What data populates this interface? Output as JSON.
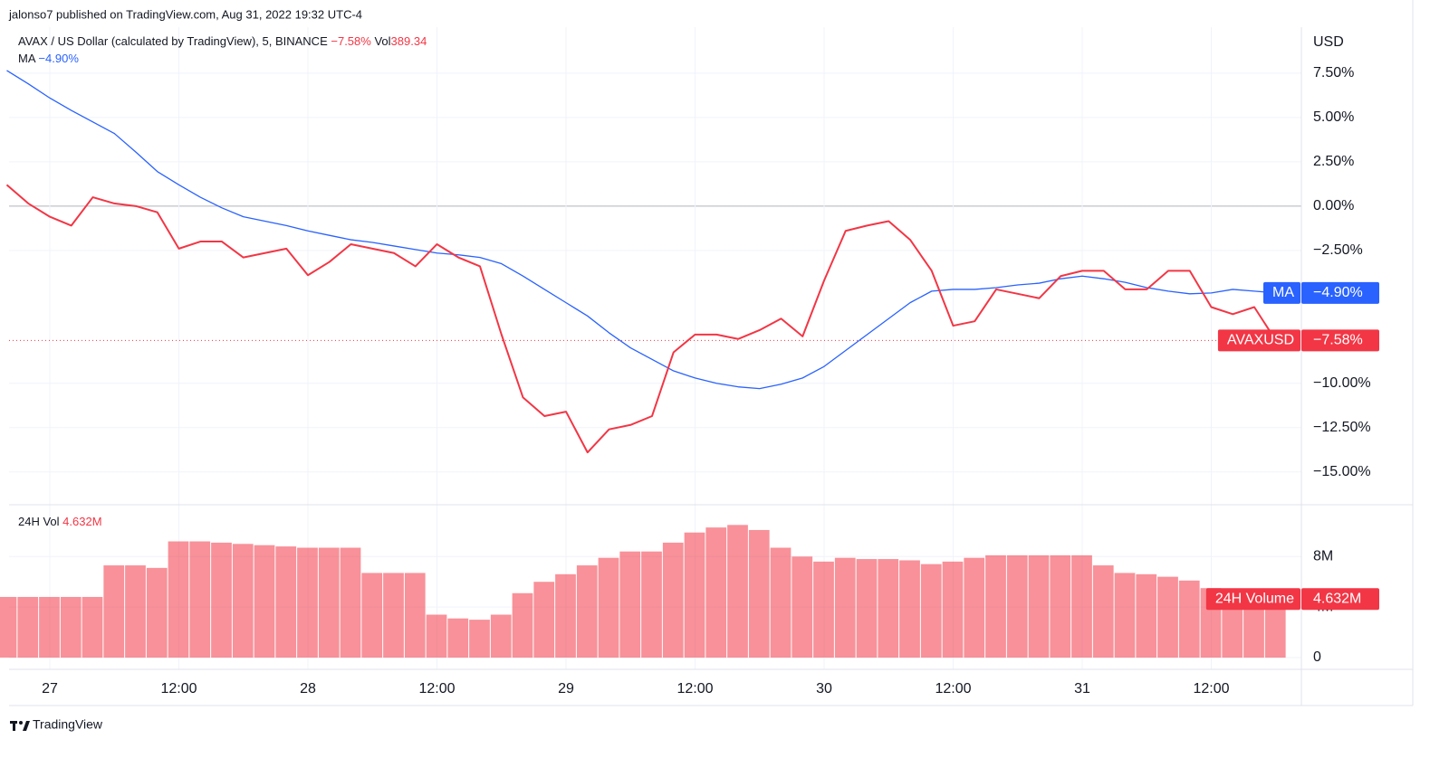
{
  "header": {
    "published": "jalonso7 published on TradingView.com, Aug 31, 2022 19:32 UTC-4"
  },
  "footer": {
    "brand": "TradingView"
  },
  "chart_data": {
    "type": "line",
    "currency": "USD",
    "symbol": "AVAXUSD",
    "vol_label": "Vol",
    "vol_value": "389.34",
    "categories": [
      null,
      null,
      "27",
      null,
      null,
      null,
      null,
      null,
      "12:00",
      null,
      null,
      null,
      null,
      null,
      "28",
      null,
      null,
      null,
      null,
      null,
      "12:00",
      null,
      null,
      null,
      null,
      null,
      "29",
      null,
      null,
      null,
      null,
      null,
      "12:00",
      null,
      null,
      null,
      null,
      null,
      "30",
      null,
      null,
      null,
      null,
      null,
      "12:00",
      null,
      null,
      null,
      null,
      null,
      "31",
      null,
      null,
      null,
      null,
      null,
      "12:00",
      null,
      null,
      null
    ],
    "ylim": [
      -16.7,
      10.1
    ],
    "yticks": [
      {
        "value": 7.5,
        "label": "7.50%"
      },
      {
        "value": 5,
        "label": "5.00%"
      },
      {
        "value": 2.5,
        "label": "2.50%"
      },
      {
        "value": 0,
        "label": "0.00%"
      },
      {
        "value": -2.5,
        "label": "−2.50%"
      },
      {
        "value": -10,
        "label": "−10.00%"
      },
      {
        "value": -12.5,
        "label": "−12.50%"
      },
      {
        "value": -15,
        "label": "−15.00%"
      }
    ],
    "grid": true,
    "series": [
      {
        "name": "AVAX / US Dollar (calculated by TradingView), 5, BINANCE",
        "color": "#f23645",
        "last_label": "−7.58%",
        "values": [
          1.2,
          0.15,
          -0.6,
          -1.1,
          0.5,
          0.15,
          0,
          -0.35,
          -2.4,
          -2.0,
          -2.0,
          -2.9,
          -2.65,
          -2.4,
          -3.9,
          -3.15,
          -2.15,
          -2.4,
          -2.65,
          -3.4,
          -2.15,
          -2.9,
          -3.4,
          -7.25,
          -10.8,
          -11.85,
          -11.6,
          -13.9,
          -12.6,
          -12.35,
          -11.85,
          -8.25,
          -7.25,
          -7.25,
          -7.5,
          -7.0,
          -6.35,
          -7.35,
          -4.2,
          -1.4,
          -1.1,
          -0.85,
          -1.9,
          -3.65,
          -6.75,
          -6.5,
          -4.7,
          -4.95,
          -5.2,
          -3.95,
          -3.65,
          -3.65,
          -4.7,
          -4.7,
          -3.65,
          -3.65,
          -5.7,
          -6.1,
          -5.7,
          -7.58
        ]
      },
      {
        "name": "MA",
        "color": "#2962ff",
        "last_label": "−4.90%",
        "values": [
          7.65,
          6.9,
          6.1,
          5.4,
          4.75,
          4.1,
          3.05,
          1.95,
          1.2,
          0.5,
          -0.1,
          -0.6,
          -0.85,
          -1.1,
          -1.4,
          -1.65,
          -1.9,
          -2.05,
          -2.25,
          -2.45,
          -2.65,
          -2.75,
          -2.9,
          -3.25,
          -3.95,
          -4.7,
          -5.45,
          -6.2,
          -7.15,
          -8.0,
          -8.65,
          -9.3,
          -9.7,
          -10.0,
          -10.2,
          -10.3,
          -10.05,
          -9.7,
          -9.05,
          -8.15,
          -7.25,
          -6.35,
          -5.45,
          -4.8,
          -4.7,
          -4.7,
          -4.6,
          -4.45,
          -4.35,
          -4.1,
          -3.95,
          -4.1,
          -4.3,
          -4.6,
          -4.8,
          -4.95,
          -4.9,
          -4.7,
          -4.8,
          -4.9
        ]
      }
    ],
    "volume": {
      "type": "bar",
      "name": "24H Vol",
      "tag": "24H Volume",
      "color": "#f23645",
      "last_label": "4.632M",
      "ylim": [
        0,
        11600000
      ],
      "yticks": [
        0,
        {
          "value": 4000000,
          "label": "4M"
        },
        {
          "value": 8000000,
          "label": "8M"
        }
      ],
      "values": [
        4800000,
        4800000,
        4800000,
        4800000,
        4800000,
        7300000,
        7300000,
        7100000,
        9200000,
        9200000,
        9100000,
        9000000,
        8900000,
        8800000,
        8700000,
        8700000,
        8700000,
        6700000,
        6700000,
        6700000,
        3400000,
        3100000,
        3000000,
        3400000,
        5100000,
        6000000,
        6600000,
        7300000,
        7900000,
        8400000,
        8400000,
        9100000,
        9900000,
        10300000,
        10500000,
        10100000,
        8700000,
        8000000,
        7600000,
        7900000,
        7800000,
        7800000,
        7700000,
        7400000,
        7600000,
        7900000,
        8100000,
        8100000,
        8100000,
        8100000,
        8100000,
        7300000,
        6700000,
        6600000,
        6400000,
        6100000,
        5500000,
        5200000,
        4900000,
        4632000
      ]
    }
  }
}
